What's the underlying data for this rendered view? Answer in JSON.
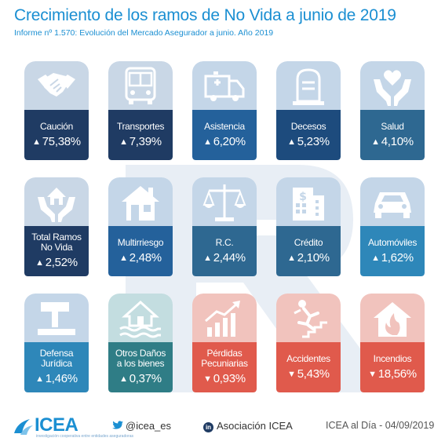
{
  "header": {
    "title": "Crecimiento de los ramos de No Vida a junio de 2019",
    "subtitle": "Informe nº 1.570: Evolución del Mercado Asegurador a junio. Año 2019"
  },
  "cards": [
    {
      "name_lines": [
        "Caución"
      ],
      "value": "75,38%",
      "direction": "up",
      "icon": "handshake-icon"
    },
    {
      "name_lines": [
        "Transportes"
      ],
      "value": "7,39%",
      "direction": "up",
      "icon": "bus-icon"
    },
    {
      "name_lines": [
        "Asistencia"
      ],
      "value": "6,20%",
      "direction": "up",
      "icon": "ambulance-icon"
    },
    {
      "name_lines": [
        "Decesos"
      ],
      "value": "5,23%",
      "direction": "up",
      "icon": "tombstone-icon"
    },
    {
      "name_lines": [
        "Salud"
      ],
      "value": "4,10%",
      "direction": "up",
      "icon": "hands-heart-icon"
    },
    {
      "name_lines": [
        "Total Ramos",
        "No Vida"
      ],
      "value": "2,52%",
      "direction": "up",
      "icon": "hands-house-icon"
    },
    {
      "name_lines": [
        "Multirriesgo"
      ],
      "value": "2,48%",
      "direction": "up",
      "icon": "house-icon"
    },
    {
      "name_lines": [
        "R.C."
      ],
      "value": "2,44%",
      "direction": "up",
      "icon": "scales-icon"
    },
    {
      "name_lines": [
        "Crédito"
      ],
      "value": "2,10%",
      "direction": "up",
      "icon": "bank-building-icon"
    },
    {
      "name_lines": [
        "Automóviles"
      ],
      "value": "1,62%",
      "direction": "up",
      "icon": "car-icon"
    },
    {
      "name_lines": [
        "Defensa",
        "Jurídica"
      ],
      "value": "1,46%",
      "direction": "up",
      "icon": "gavel-icon"
    },
    {
      "name_lines": [
        "Otros Daños",
        "a los bienes"
      ],
      "value": "0,37%",
      "direction": "up",
      "icon": "flooded-house-icon"
    },
    {
      "name_lines": [
        "Pérdidas",
        "Pecuniarias"
      ],
      "value": "0,93%",
      "direction": "down",
      "icon": "growth-chart-icon"
    },
    {
      "name_lines": [
        "Accidentes"
      ],
      "value": "5,43%",
      "direction": "down",
      "icon": "falling-person-icon"
    },
    {
      "name_lines": [
        "Incendios"
      ],
      "value": "18,56%",
      "direction": "down",
      "icon": "burning-house-icon"
    }
  ],
  "arrows": {
    "up": "▲",
    "down": "▼"
  },
  "footer": {
    "logo_text": "ICEA",
    "logo_tagline": "investigación cooperativa entre entidades aseguradoras",
    "twitter": "@icea_es",
    "linkedin_icon_text": "in",
    "linkedin": "Asociación ICEA",
    "date": "ICEA al Día - 04/09/2019"
  }
}
